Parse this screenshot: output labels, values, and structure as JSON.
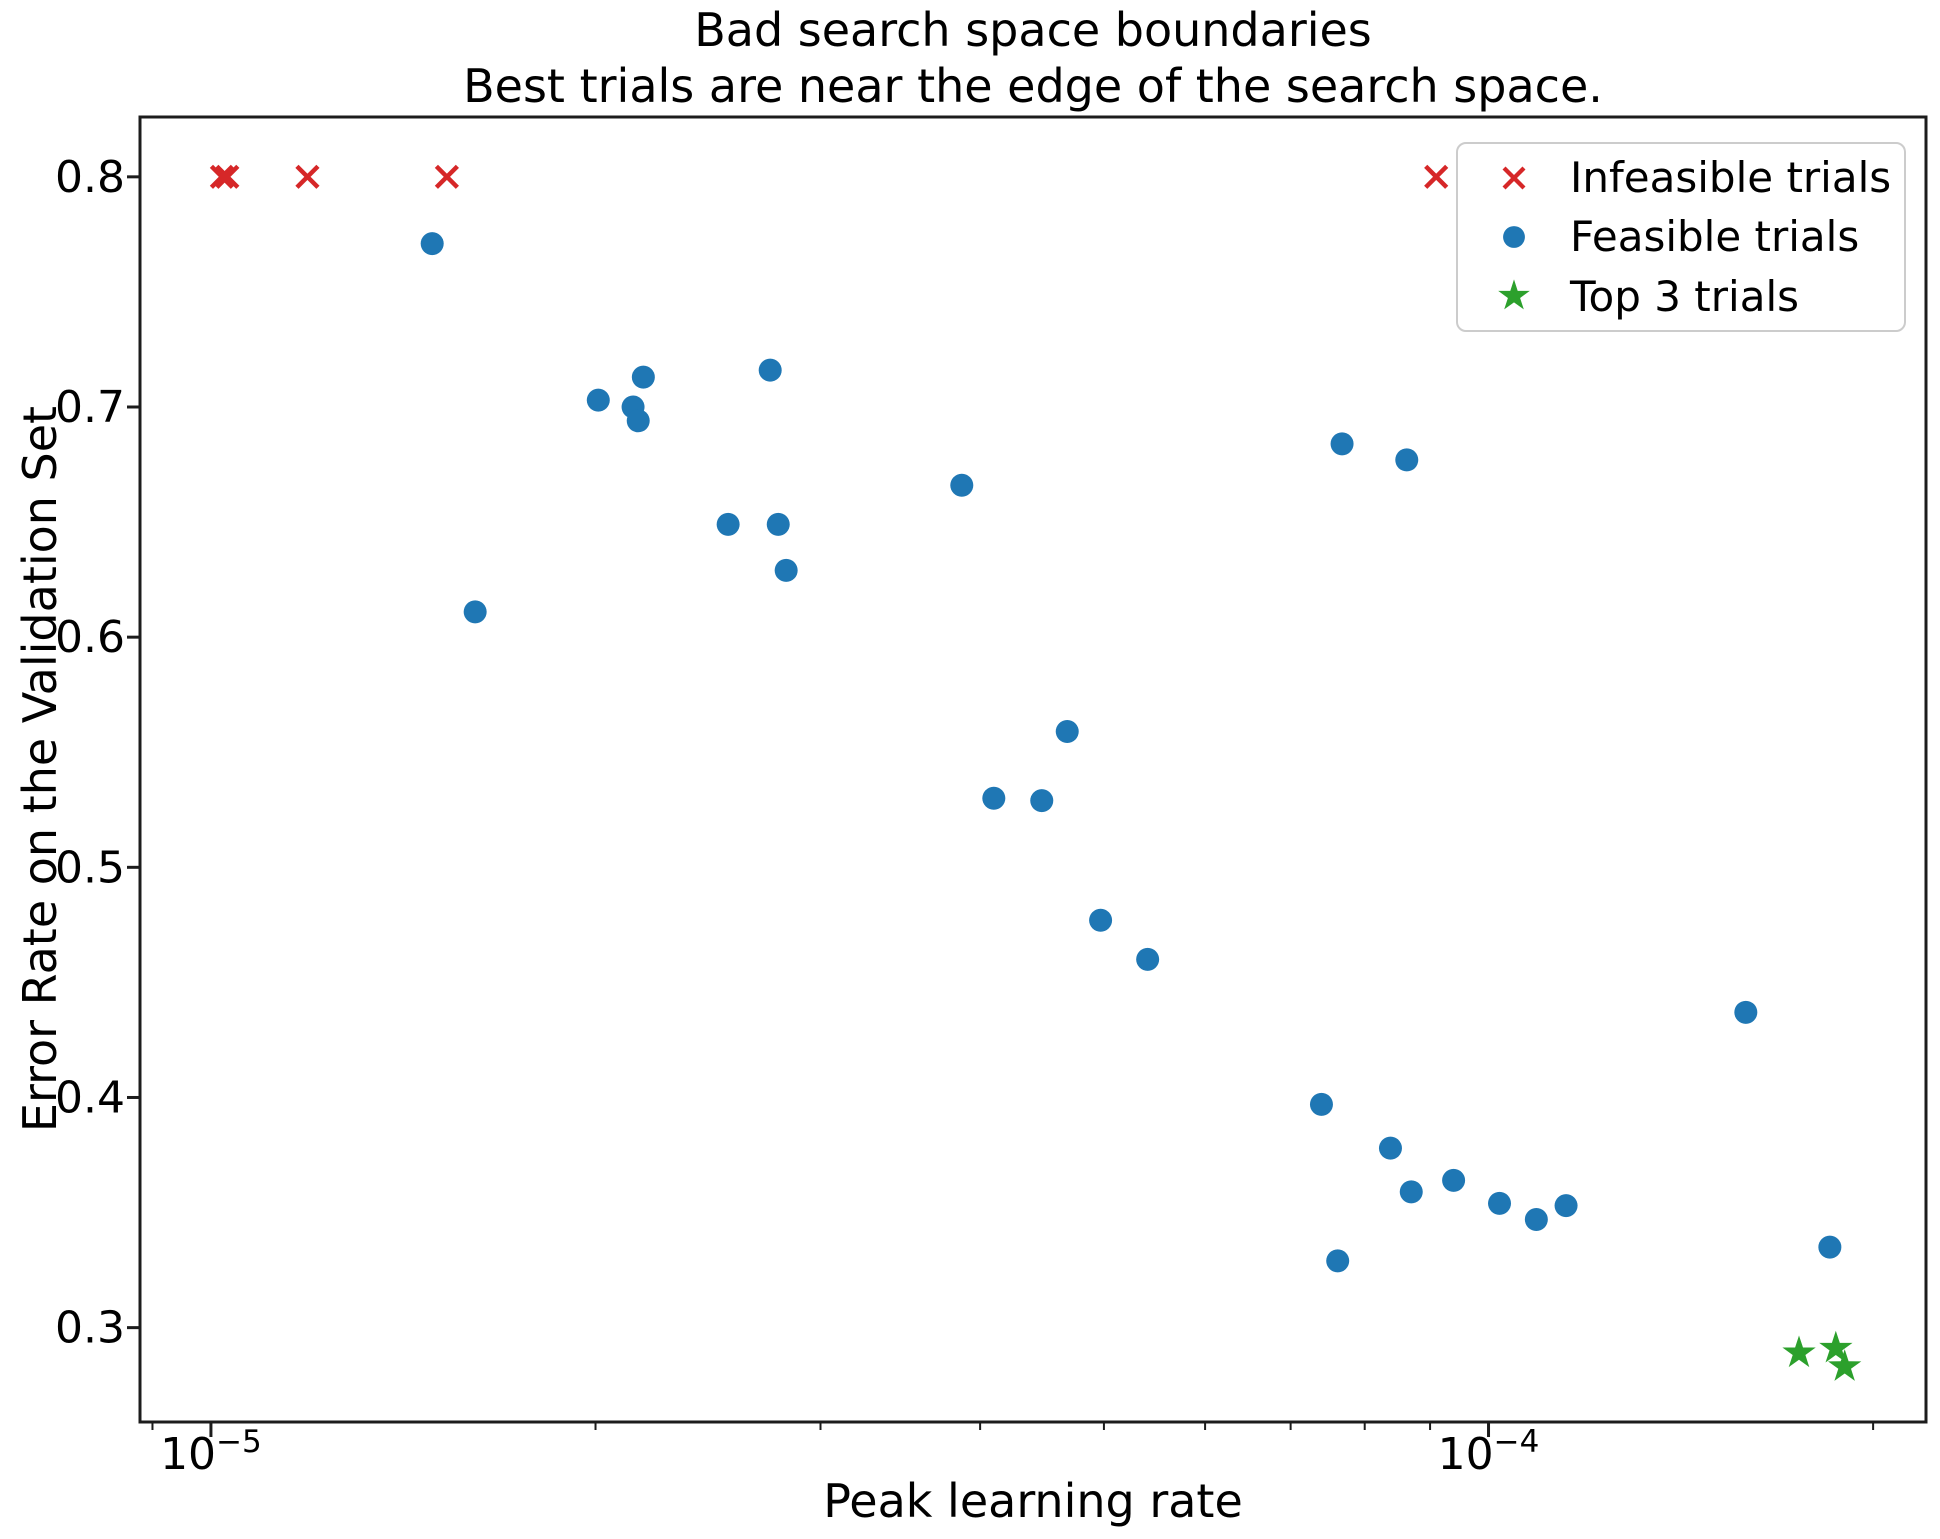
{
  "chart_data": {
    "type": "scatter",
    "title_line1": "Bad search space boundaries",
    "title_line2": "Best trials are near the edge of the search space.",
    "xlabel": "Peak learning rate",
    "ylabel": "Error Rate on the Validation Set",
    "x_scale": "log",
    "y_scale": "linear",
    "grid": false,
    "legend_position": "upper right",
    "background_color": "#ffffff",
    "axis_color": "#1c1c1c",
    "xlim": [
      8.8e-06,
      0.00022
    ],
    "ylim": [
      0.259,
      0.826
    ],
    "x_major_ticks": [
      {
        "value": 1e-05,
        "base": "10",
        "exp": "−5"
      },
      {
        "value": 0.0001,
        "base": "10",
        "exp": "−4"
      }
    ],
    "x_minor_ticks": [
      9e-06,
      2e-05,
      3e-05,
      4e-05,
      5e-05,
      6e-05,
      7e-05,
      8e-05,
      9e-05,
      0.0002
    ],
    "y_ticks": [
      {
        "value": 0.8,
        "label": "0.8"
      },
      {
        "value": 0.7,
        "label": "0.7"
      },
      {
        "value": 0.6,
        "label": "0.6"
      },
      {
        "value": 0.5,
        "label": "0.5"
      },
      {
        "value": 0.4,
        "label": "0.4"
      },
      {
        "value": 0.3,
        "label": "0.3"
      }
    ],
    "series": [
      {
        "name": "Infeasible trials",
        "marker": "x",
        "color": "#d62728",
        "points": [
          [
            1.02e-05,
            0.8
          ],
          [
            1.03e-05,
            0.8
          ],
          [
            1.19e-05,
            0.8
          ],
          [
            1.53e-05,
            0.8
          ],
          [
            9.1e-05,
            0.8
          ]
        ]
      },
      {
        "name": "Feasible trials",
        "marker": "circle",
        "color": "#1f77b4",
        "points": [
          [
            1.49e-05,
            0.771
          ],
          [
            1.61e-05,
            0.611
          ],
          [
            2.01e-05,
            0.703
          ],
          [
            2.14e-05,
            0.7
          ],
          [
            2.16e-05,
            0.694
          ],
          [
            2.18e-05,
            0.713
          ],
          [
            2.54e-05,
            0.649
          ],
          [
            2.74e-05,
            0.716
          ],
          [
            2.78e-05,
            0.649
          ],
          [
            2.82e-05,
            0.629
          ],
          [
            3.87e-05,
            0.666
          ],
          [
            4.1e-05,
            0.53
          ],
          [
            4.47e-05,
            0.529
          ],
          [
            4.68e-05,
            0.559
          ],
          [
            4.97e-05,
            0.477
          ],
          [
            5.41e-05,
            0.46
          ],
          [
            7.4e-05,
            0.397
          ],
          [
            7.62e-05,
            0.329
          ],
          [
            7.68e-05,
            0.684
          ],
          [
            8.38e-05,
            0.378
          ],
          [
            8.63e-05,
            0.677
          ],
          [
            8.7e-05,
            0.359
          ],
          [
            9.39e-05,
            0.364
          ],
          [
            0.000102,
            0.354
          ],
          [
            0.000109,
            0.347
          ],
          [
            0.000115,
            0.353
          ],
          [
            0.000159,
            0.437
          ],
          [
            0.000185,
            0.335
          ]
        ]
      },
      {
        "name": "Top 3 trials",
        "marker": "star",
        "color": "#2ca02c",
        "points": [
          [
            0.000175,
            0.289
          ],
          [
            0.000187,
            0.291
          ],
          [
            0.00019,
            0.283
          ]
        ]
      }
    ]
  }
}
